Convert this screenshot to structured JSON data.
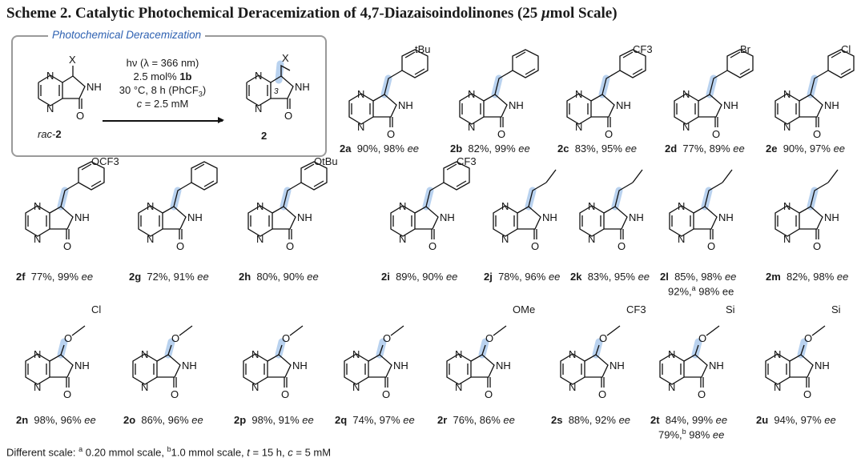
{
  "title": {
    "prefix": "Scheme 2. Catalytic Photochemical Deracemization of 4,7-Diazaisoindolinones (25 ",
    "mu": "μ",
    "suffix": "mol Scale)"
  },
  "box": {
    "label": "Photochemical Deracemization",
    "conditions": {
      "line1": "hν (λ = 366 nm)",
      "line2_pre": "2.5 mol% ",
      "line2_bold": "1b",
      "line3": "30 °C, 8 h (PhCF",
      "line3_sub": "3",
      "line3_post": ")",
      "line4_c": "c",
      "line4_rest": " = 2.5 mM"
    },
    "reactant_label_pre": "rac",
    "reactant_label_bold": "2",
    "product_label": "2",
    "product_stereo": "3",
    "x_label": "X"
  },
  "atoms": {
    "N": "N",
    "NH": "NH",
    "O": "O"
  },
  "compounds": [
    {
      "id": "2a",
      "yield": "90%,",
      "ee": "98%",
      "ee_label": "ee",
      "sub": "tBu"
    },
    {
      "id": "2b",
      "yield": "82%,",
      "ee": "99%",
      "ee_label": "ee",
      "sub": ""
    },
    {
      "id": "2c",
      "yield": "83%,",
      "ee": "95%",
      "ee_label": "ee",
      "sub": "CF3"
    },
    {
      "id": "2d",
      "yield": "77%,",
      "ee": "89%",
      "ee_label": "ee",
      "sub": "Br"
    },
    {
      "id": "2e",
      "yield": "90%,",
      "ee": "97%",
      "ee_label": "ee",
      "sub": "Cl"
    },
    {
      "id": "2f",
      "yield": "77%,",
      "ee": "99%",
      "ee_label": "ee",
      "sub": "OCF3"
    },
    {
      "id": "2g",
      "yield": "72%,",
      "ee": "91%",
      "ee_label": "ee",
      "sub": ""
    },
    {
      "id": "2h",
      "yield": "80%,",
      "ee": "90%",
      "ee_label": "ee",
      "sub": "OtBu"
    },
    {
      "id": "2i",
      "yield": "89%,",
      "ee": "90%",
      "ee_label": "ee",
      "sub": "CF3"
    },
    {
      "id": "2j",
      "yield": "78%,",
      "ee": "96%",
      "ee_label": "ee",
      "sub": ""
    },
    {
      "id": "2k",
      "yield": "83%,",
      "ee": "95%",
      "ee_label": "ee",
      "sub": ""
    },
    {
      "id": "2l",
      "yield": "85%,",
      "ee": "98%",
      "ee_label": "ee",
      "sub": "",
      "extra_pre": "92%,",
      "extra_sup": "a",
      "extra_ee": "98% ee"
    },
    {
      "id": "2m",
      "yield": "82%,",
      "ee": "98%",
      "ee_label": "ee",
      "sub": ""
    },
    {
      "id": "2n",
      "yield": "98%,",
      "ee": "96%",
      "ee_label": "ee",
      "sub": "Cl"
    },
    {
      "id": "2o",
      "yield": "86%,",
      "ee": "96%",
      "ee_label": "ee",
      "sub": ""
    },
    {
      "id": "2p",
      "yield": "98%,",
      "ee": "91%",
      "ee_label": "ee",
      "sub": ""
    },
    {
      "id": "2q",
      "yield": "74%,",
      "ee": "97%",
      "ee_label": "ee",
      "sub": ""
    },
    {
      "id": "2r",
      "yield": "76%,",
      "ee": "86%",
      "ee_label": "ee",
      "sub": "OMe"
    },
    {
      "id": "2s",
      "yield": "88%,",
      "ee": "92%",
      "ee_label": "ee",
      "sub": "CF3"
    },
    {
      "id": "2t",
      "yield": "84%,",
      "ee": "99%",
      "ee_label": "ee",
      "sub": "Si",
      "extra_pre": "79%,",
      "extra_sup": "b",
      "extra_ee": "98%",
      "extra_ee_label": "ee"
    },
    {
      "id": "2u",
      "yield": "94%,",
      "ee": "97%",
      "ee_label": "ee",
      "sub": "Si"
    }
  ],
  "footnote": {
    "pre": "Different scale: ",
    "a": "a",
    "a_text": " 0.20 mmol scale,  ",
    "b": "b",
    "b_text": "1.0 mmol scale, ",
    "t": "t",
    "t_text": " = 15 h, ",
    "c": "c",
    "c_text": " = 5 mM"
  },
  "colors": {
    "highlight": "#b9d2ef",
    "box_border": "#9a9a9a",
    "box_title": "#2f62b2"
  }
}
